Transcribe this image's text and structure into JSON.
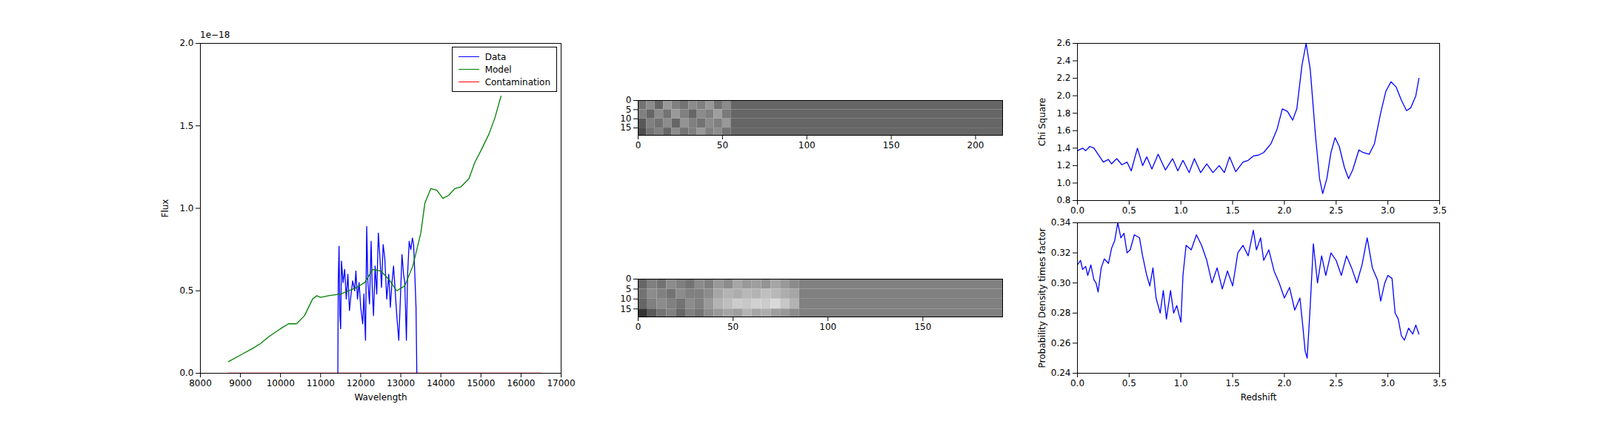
{
  "chart_data": [
    {
      "type": "line",
      "xlabel": "Wavelength",
      "ylabel": "Flux",
      "annotation": "1e−18",
      "xlim": [
        8000,
        17000
      ],
      "xticks": [
        8000,
        9000,
        10000,
        11000,
        12000,
        13000,
        14000,
        15000,
        16000,
        17000
      ],
      "ylim": [
        0,
        2
      ],
      "yticks": [
        {
          "value": 0,
          "label": "0.0"
        },
        0.5,
        {
          "value": 1,
          "label": "1.0"
        },
        1.5,
        {
          "value": 2,
          "label": "2.0"
        }
      ],
      "legend": "upper right",
      "grid": false,
      "series": [
        {
          "name": "Data",
          "color": "#0000ff",
          "x": [
            11430,
            11440,
            11460,
            11480,
            11500,
            11520,
            11560,
            11600,
            11640,
            11680,
            11720,
            11760,
            11800,
            11850,
            11880,
            11920,
            11960,
            12000,
            12050,
            12080,
            12120,
            12150,
            12180,
            12220,
            12260,
            12290,
            12320,
            12360,
            12400,
            12440,
            12480,
            12520,
            12560,
            12600,
            12650,
            12700,
            12740,
            12780,
            12820,
            12860,
            12900,
            12950,
            12990,
            13030,
            13070,
            13100,
            13140,
            13170,
            13210,
            13250,
            13290,
            13320,
            13350,
            13380,
            13400
          ],
          "values": [
            0,
            0.55,
            0.77,
            0.35,
            0.27,
            0.68,
            0.55,
            0.63,
            0.45,
            0.6,
            0.38,
            0.48,
            0.56,
            0.5,
            0.62,
            0.45,
            0.55,
            0.4,
            0.3,
            0.48,
            0.2,
            0.89,
            0.55,
            0.42,
            0.8,
            0.5,
            0.35,
            0.65,
            0.48,
            0.85,
            0.7,
            0.52,
            0.78,
            0.7,
            0.45,
            0.6,
            0.4,
            0.55,
            0.65,
            0.5,
            0.35,
            0.2,
            0.45,
            0.72,
            0.6,
            0.55,
            0.2,
            0.6,
            0.8,
            0.75,
            0.82,
            0.78,
            0.6,
            0.4,
            0
          ]
        },
        {
          "name": "Model",
          "color": "#008000",
          "x": [
            8700,
            9000,
            9300,
            9500,
            9700,
            10000,
            10200,
            10400,
            10600,
            10800,
            10900,
            11000,
            11200,
            11500,
            11700,
            11900,
            12100,
            12300,
            12500,
            12700,
            12900,
            13100,
            13300,
            13500,
            13600,
            13750,
            13900,
            14050,
            14200,
            14350,
            14500,
            14700,
            14850,
            15000,
            15200,
            15350,
            15500
          ],
          "values": [
            0.07,
            0.11,
            0.15,
            0.18,
            0.22,
            0.27,
            0.3,
            0.3,
            0.35,
            0.45,
            0.47,
            0.46,
            0.47,
            0.48,
            0.5,
            0.52,
            0.55,
            0.63,
            0.62,
            0.57,
            0.5,
            0.53,
            0.65,
            0.85,
            1.03,
            1.12,
            1.11,
            1.06,
            1.08,
            1.12,
            1.13,
            1.18,
            1.28,
            1.35,
            1.45,
            1.55,
            1.68
          ]
        },
        {
          "name": "Contamination",
          "color": "#ff0000",
          "x": [
            8700,
            16500
          ],
          "values": [
            0,
            0
          ]
        }
      ]
    },
    {
      "type": "heatmap",
      "xlim": [
        0,
        216
      ],
      "xticks": [
        0,
        50,
        100,
        150,
        200
      ],
      "ylim": [
        0,
        19
      ],
      "yticks": [
        0,
        5,
        10,
        15
      ],
      "zlim": [
        0,
        1
      ],
      "x_edges": [
        0,
        5,
        10,
        15,
        20,
        25,
        30,
        35,
        40,
        45,
        50,
        55,
        216
      ],
      "y_edges": [
        0,
        5,
        10,
        15,
        19
      ],
      "values": [
        [
          0.45,
          0.55,
          0.4,
          0.6,
          0.5,
          0.45,
          0.55,
          0.5,
          0.6,
          0.45,
          0.55,
          0.4
        ],
        [
          0.5,
          0.4,
          0.55,
          0.45,
          0.6,
          0.5,
          0.4,
          0.55,
          0.5,
          0.62,
          0.48,
          0.4
        ],
        [
          0.35,
          0.5,
          0.45,
          0.55,
          0.4,
          0.58,
          0.5,
          0.45,
          0.55,
          0.5,
          0.6,
          0.4
        ],
        [
          0.3,
          0.45,
          0.5,
          0.4,
          0.55,
          0.45,
          0.5,
          0.6,
          0.5,
          0.55,
          0.45,
          0.4
        ]
      ]
    },
    {
      "type": "heatmap",
      "xlim": [
        0,
        192
      ],
      "xticks": [
        0,
        50,
        100,
        150
      ],
      "ylim": [
        0,
        19
      ],
      "yticks": [
        0,
        5,
        10,
        15
      ],
      "zlim": [
        0,
        1
      ],
      "x_edges": [
        0,
        5,
        10,
        15,
        20,
        25,
        30,
        35,
        40,
        45,
        50,
        55,
        60,
        65,
        70,
        75,
        80,
        85,
        192
      ],
      "y_edges": [
        0,
        5,
        10,
        15,
        19
      ],
      "values": [
        [
          0.4,
          0.5,
          0.45,
          0.55,
          0.5,
          0.45,
          0.55,
          0.5,
          0.6,
          0.55,
          0.65,
          0.6,
          0.62,
          0.58,
          0.65,
          0.6,
          0.55,
          0.5
        ],
        [
          0.45,
          0.55,
          0.5,
          0.45,
          0.55,
          0.5,
          0.5,
          0.55,
          0.65,
          0.7,
          0.68,
          0.72,
          0.7,
          0.75,
          0.72,
          0.68,
          0.65,
          0.5
        ],
        [
          0.4,
          0.5,
          0.55,
          0.5,
          0.45,
          0.55,
          0.5,
          0.6,
          0.7,
          0.75,
          0.8,
          0.78,
          0.82,
          0.8,
          0.85,
          0.78,
          0.7,
          0.5
        ],
        [
          0.2,
          0.35,
          0.45,
          0.5,
          0.4,
          0.5,
          0.45,
          0.55,
          0.6,
          0.65,
          0.62,
          0.7,
          0.65,
          0.68,
          0.62,
          0.6,
          0.55,
          0.5
        ]
      ]
    },
    {
      "type": "line",
      "ylabel": "Chi Square",
      "color": "#0000ff",
      "grid": false,
      "xlim": [
        0,
        3.5
      ],
      "xticks": [
        {
          "value": 0,
          "label": "0.0"
        },
        0.5,
        {
          "value": 1,
          "label": "1.0"
        },
        1.5,
        {
          "value": 2,
          "label": "2.0"
        },
        2.5,
        {
          "value": 3,
          "label": "3.0"
        },
        3.5
      ],
      "ylim": [
        0.8,
        2.6
      ],
      "yticks": [
        0.8,
        {
          "value": 1,
          "label": "1.0"
        },
        1.2,
        1.4,
        1.6,
        1.8,
        {
          "value": 2,
          "label": "2.0"
        },
        2.2,
        2.4,
        2.6
      ],
      "x": [
        0,
        0.05,
        0.08,
        0.12,
        0.16,
        0.2,
        0.25,
        0.3,
        0.33,
        0.38,
        0.43,
        0.48,
        0.52,
        0.58,
        0.63,
        0.67,
        0.72,
        0.78,
        0.85,
        0.92,
        0.97,
        1.02,
        1.08,
        1.13,
        1.19,
        1.25,
        1.31,
        1.37,
        1.42,
        1.47,
        1.53,
        1.6,
        1.65,
        1.7,
        1.75,
        1.8,
        1.87,
        1.93,
        1.98,
        2.03,
        2.08,
        2.12,
        2.17,
        2.21,
        2.25,
        2.3,
        2.34,
        2.37,
        2.41,
        2.45,
        2.49,
        2.53,
        2.58,
        2.62,
        2.66,
        2.72,
        2.76,
        2.82,
        2.87,
        2.93,
        2.98,
        3.03,
        3.08,
        3.13,
        3.18,
        3.22,
        3.27,
        3.3
      ],
      "values": [
        1.37,
        1.4,
        1.37,
        1.42,
        1.4,
        1.33,
        1.24,
        1.27,
        1.22,
        1.28,
        1.21,
        1.24,
        1.14,
        1.4,
        1.2,
        1.3,
        1.16,
        1.33,
        1.15,
        1.28,
        1.14,
        1.26,
        1.12,
        1.28,
        1.12,
        1.22,
        1.12,
        1.2,
        1.12,
        1.3,
        1.13,
        1.24,
        1.26,
        1.31,
        1.32,
        1.35,
        1.45,
        1.62,
        1.85,
        1.82,
        1.72,
        1.85,
        2.35,
        2.6,
        2.3,
        1.55,
        1.05,
        0.88,
        1.05,
        1.35,
        1.52,
        1.42,
        1.18,
        1.05,
        1.15,
        1.38,
        1.35,
        1.33,
        1.45,
        1.8,
        2.05,
        2.16,
        2.1,
        1.95,
        1.83,
        1.86,
        2.0,
        2.2
      ]
    },
    {
      "type": "line",
      "xlabel": "Redshift",
      "ylabel": "Probability Density times factor",
      "color": "#0000ff",
      "grid": false,
      "xlim": [
        0,
        3.5
      ],
      "xticks": [
        {
          "value": 0,
          "label": "0.0"
        },
        0.5,
        {
          "value": 1,
          "label": "1.0"
        },
        1.5,
        {
          "value": 2,
          "label": "2.0"
        },
        2.5,
        {
          "value": 3,
          "label": "3.0"
        },
        3.5
      ],
      "ylim": [
        0.24,
        0.34
      ],
      "yticks": [
        0.24,
        0.26,
        0.28,
        {
          "value": 0.3,
          "label": "0.30"
        },
        0.32,
        0.34
      ],
      "x": [
        0,
        0.03,
        0.05,
        0.08,
        0.1,
        0.13,
        0.16,
        0.18,
        0.2,
        0.23,
        0.26,
        0.3,
        0.33,
        0.36,
        0.39,
        0.42,
        0.45,
        0.48,
        0.51,
        0.55,
        0.6,
        0.63,
        0.67,
        0.7,
        0.73,
        0.76,
        0.8,
        0.83,
        0.86,
        0.9,
        0.93,
        0.96,
        1.0,
        1.02,
        1.05,
        1.1,
        1.15,
        1.2,
        1.25,
        1.3,
        1.35,
        1.4,
        1.45,
        1.5,
        1.55,
        1.6,
        1.65,
        1.7,
        1.73,
        1.77,
        1.8,
        1.85,
        1.9,
        1.95,
        2.0,
        2.05,
        2.1,
        2.15,
        2.18,
        2.2,
        2.22,
        2.25,
        2.28,
        2.32,
        2.36,
        2.4,
        2.45,
        2.5,
        2.55,
        2.6,
        2.65,
        2.7,
        2.75,
        2.8,
        2.85,
        2.9,
        2.93,
        2.97,
        3.0,
        3.04,
        3.07,
        3.1,
        3.13,
        3.16,
        3.2,
        3.24,
        3.27,
        3.3
      ],
      "values": [
        0.312,
        0.315,
        0.309,
        0.311,
        0.305,
        0.312,
        0.302,
        0.3,
        0.294,
        0.31,
        0.316,
        0.313,
        0.323,
        0.328,
        0.34,
        0.33,
        0.333,
        0.32,
        0.322,
        0.332,
        0.33,
        0.318,
        0.305,
        0.298,
        0.31,
        0.29,
        0.28,
        0.295,
        0.276,
        0.295,
        0.28,
        0.285,
        0.274,
        0.305,
        0.325,
        0.322,
        0.332,
        0.325,
        0.315,
        0.3,
        0.31,
        0.296,
        0.308,
        0.298,
        0.32,
        0.325,
        0.318,
        0.335,
        0.322,
        0.33,
        0.315,
        0.322,
        0.308,
        0.3,
        0.29,
        0.297,
        0.282,
        0.29,
        0.27,
        0.255,
        0.25,
        0.285,
        0.326,
        0.3,
        0.318,
        0.305,
        0.32,
        0.315,
        0.305,
        0.318,
        0.31,
        0.3,
        0.312,
        0.33,
        0.31,
        0.302,
        0.288,
        0.3,
        0.305,
        0.303,
        0.28,
        0.276,
        0.265,
        0.262,
        0.27,
        0.266,
        0.272,
        0.266
      ]
    }
  ]
}
